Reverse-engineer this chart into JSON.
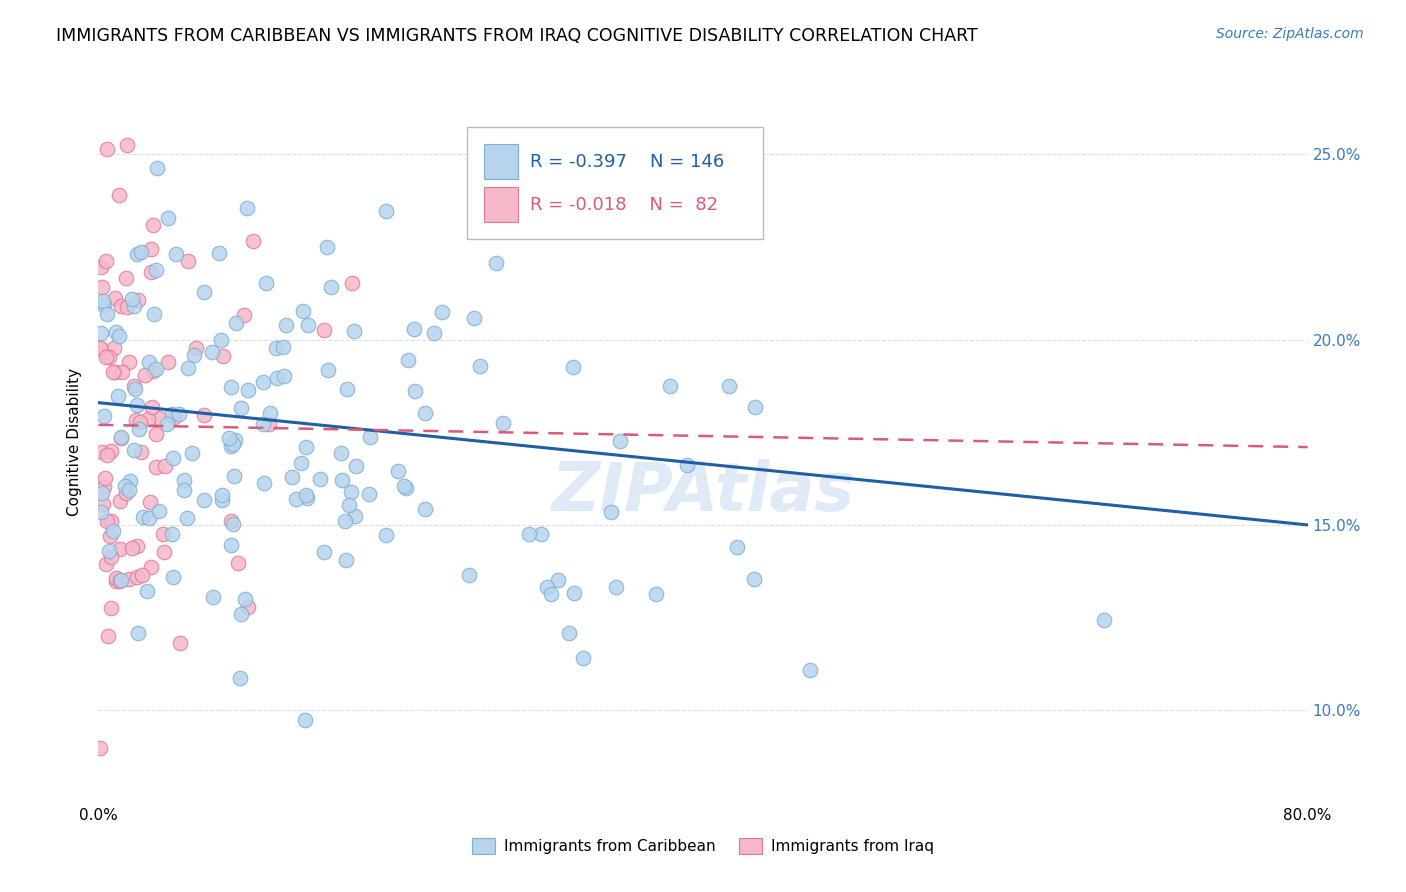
{
  "title": "IMMIGRANTS FROM CARIBBEAN VS IMMIGRANTS FROM IRAQ COGNITIVE DISABILITY CORRELATION CHART",
  "source": "Source: ZipAtlas.com",
  "ylabel": "Cognitive Disability",
  "yticks": [
    0.1,
    0.15,
    0.2,
    0.25
  ],
  "ytick_labels": [
    "10.0%",
    "15.0%",
    "20.0%",
    "25.0%"
  ],
  "xlim": [
    0.0,
    0.8
  ],
  "ylim": [
    0.075,
    0.27
  ],
  "blue_color": "#b8d4ed",
  "blue_edge_color": "#7bafd4",
  "pink_color": "#f5b8c8",
  "pink_edge_color": "#e07898",
  "blue_line_color": "#1f5fa6",
  "pink_line_color": "#d95a7a",
  "label_caribbean": "Immigrants from Caribbean",
  "label_iraq": "Immigrants from Iraq",
  "title_fontsize": 12.5,
  "axis_label_fontsize": 11,
  "tick_fontsize": 11,
  "legend_fontsize": 13,
  "blue_R": -0.397,
  "pink_R": -0.018,
  "blue_N": 146,
  "pink_N": 82,
  "blue_trend_x": [
    0.0,
    0.8
  ],
  "blue_trend_y": [
    0.183,
    0.15
  ],
  "pink_trend_x": [
    0.0,
    0.8
  ],
  "pink_trend_y": [
    0.177,
    0.171
  ],
  "legend_r1": "-0.397",
  "legend_n1": "146",
  "legend_r2": "-0.018",
  "legend_n2": " 82",
  "watermark": "ZIPAtlas",
  "grid_color": "#dddddd",
  "background": "#ffffff"
}
